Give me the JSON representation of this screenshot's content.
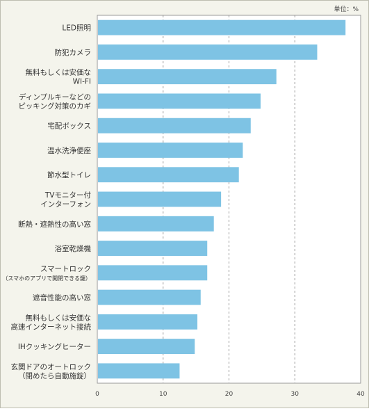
{
  "chart_data": {
    "type": "bar",
    "orientation": "horizontal",
    "unit_label": "単位：%",
    "categories": [
      [
        "LED照明"
      ],
      [
        "防犯カメラ"
      ],
      [
        "無料もしくは安価な",
        "WI-FI"
      ],
      [
        "ディンプルキーなどの",
        "ピッキング対策のカギ"
      ],
      [
        "宅配ボックス"
      ],
      [
        "温水洗浄便座"
      ],
      [
        "節水型トイレ"
      ],
      [
        "TVモニター付",
        "インターフォン"
      ],
      [
        "断熱・遮熱性の高い窓"
      ],
      [
        "浴室乾燥機"
      ],
      [
        "スマートロック",
        "（スマホのアプリで開閉できる鍵）"
      ],
      [
        "遮音性能の高い窓"
      ],
      [
        "無料もしくは安価な",
        "高速インターネット接続"
      ],
      [
        "IHクッキングヒーター"
      ],
      [
        "玄関ドアのオートロック",
        "（閉めたら自動施錠）"
      ]
    ],
    "values": [
      37.7,
      33.4,
      27.2,
      24.8,
      23.3,
      22.1,
      21.5,
      18.8,
      17.7,
      16.7,
      16.7,
      15.7,
      15.2,
      14.8,
      12.5
    ],
    "xlim": [
      0,
      40
    ],
    "xticks": [
      0,
      10,
      20,
      30,
      40
    ],
    "grid": true,
    "bar_color": "#7ec3e4",
    "grid_color": "#9a9a9a"
  }
}
